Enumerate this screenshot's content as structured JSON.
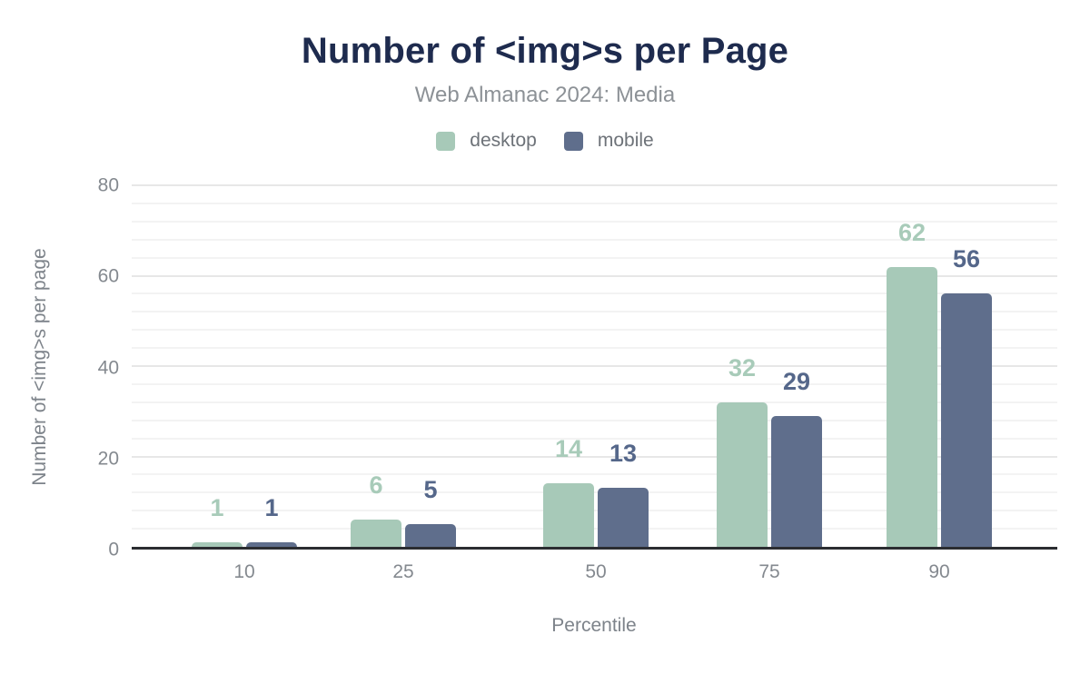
{
  "chart_data": {
    "type": "bar",
    "title": "Number of <img>s per Page",
    "subtitle": "Web Almanac 2024: Media",
    "xlabel": "Percentile",
    "ylabel": "Number of <img>s per page",
    "categories": [
      "10",
      "25",
      "50",
      "75",
      "90"
    ],
    "series": [
      {
        "name": "desktop",
        "color": "#a7c9b8",
        "label_color": "#a8cbb9",
        "values": [
          1,
          6,
          14,
          32,
          62
        ]
      },
      {
        "name": "mobile",
        "color": "#5f6e8c",
        "label_color": "#55678a",
        "values": [
          1,
          5,
          13,
          29,
          56
        ]
      }
    ],
    "ylim": [
      0,
      80
    ],
    "y_major_step": 20,
    "y_minor_step": 4,
    "y_tick_labels": [
      "0",
      "20",
      "40",
      "60",
      "80"
    ],
    "grid": "horizontal",
    "legend_position": "top",
    "bar_labels_shown": true
  },
  "colors": {
    "background": "#ffffff",
    "title_text": "#1e2b4e",
    "subtitle_text": "#8c9196",
    "legend_text": "#6d7278",
    "tick_text": "#84898f",
    "axis_title_text": "#7d838a",
    "axis_line": "#2b2d31",
    "grid_major": "#e7e7e7",
    "grid_minor": "#f3f3f3"
  }
}
